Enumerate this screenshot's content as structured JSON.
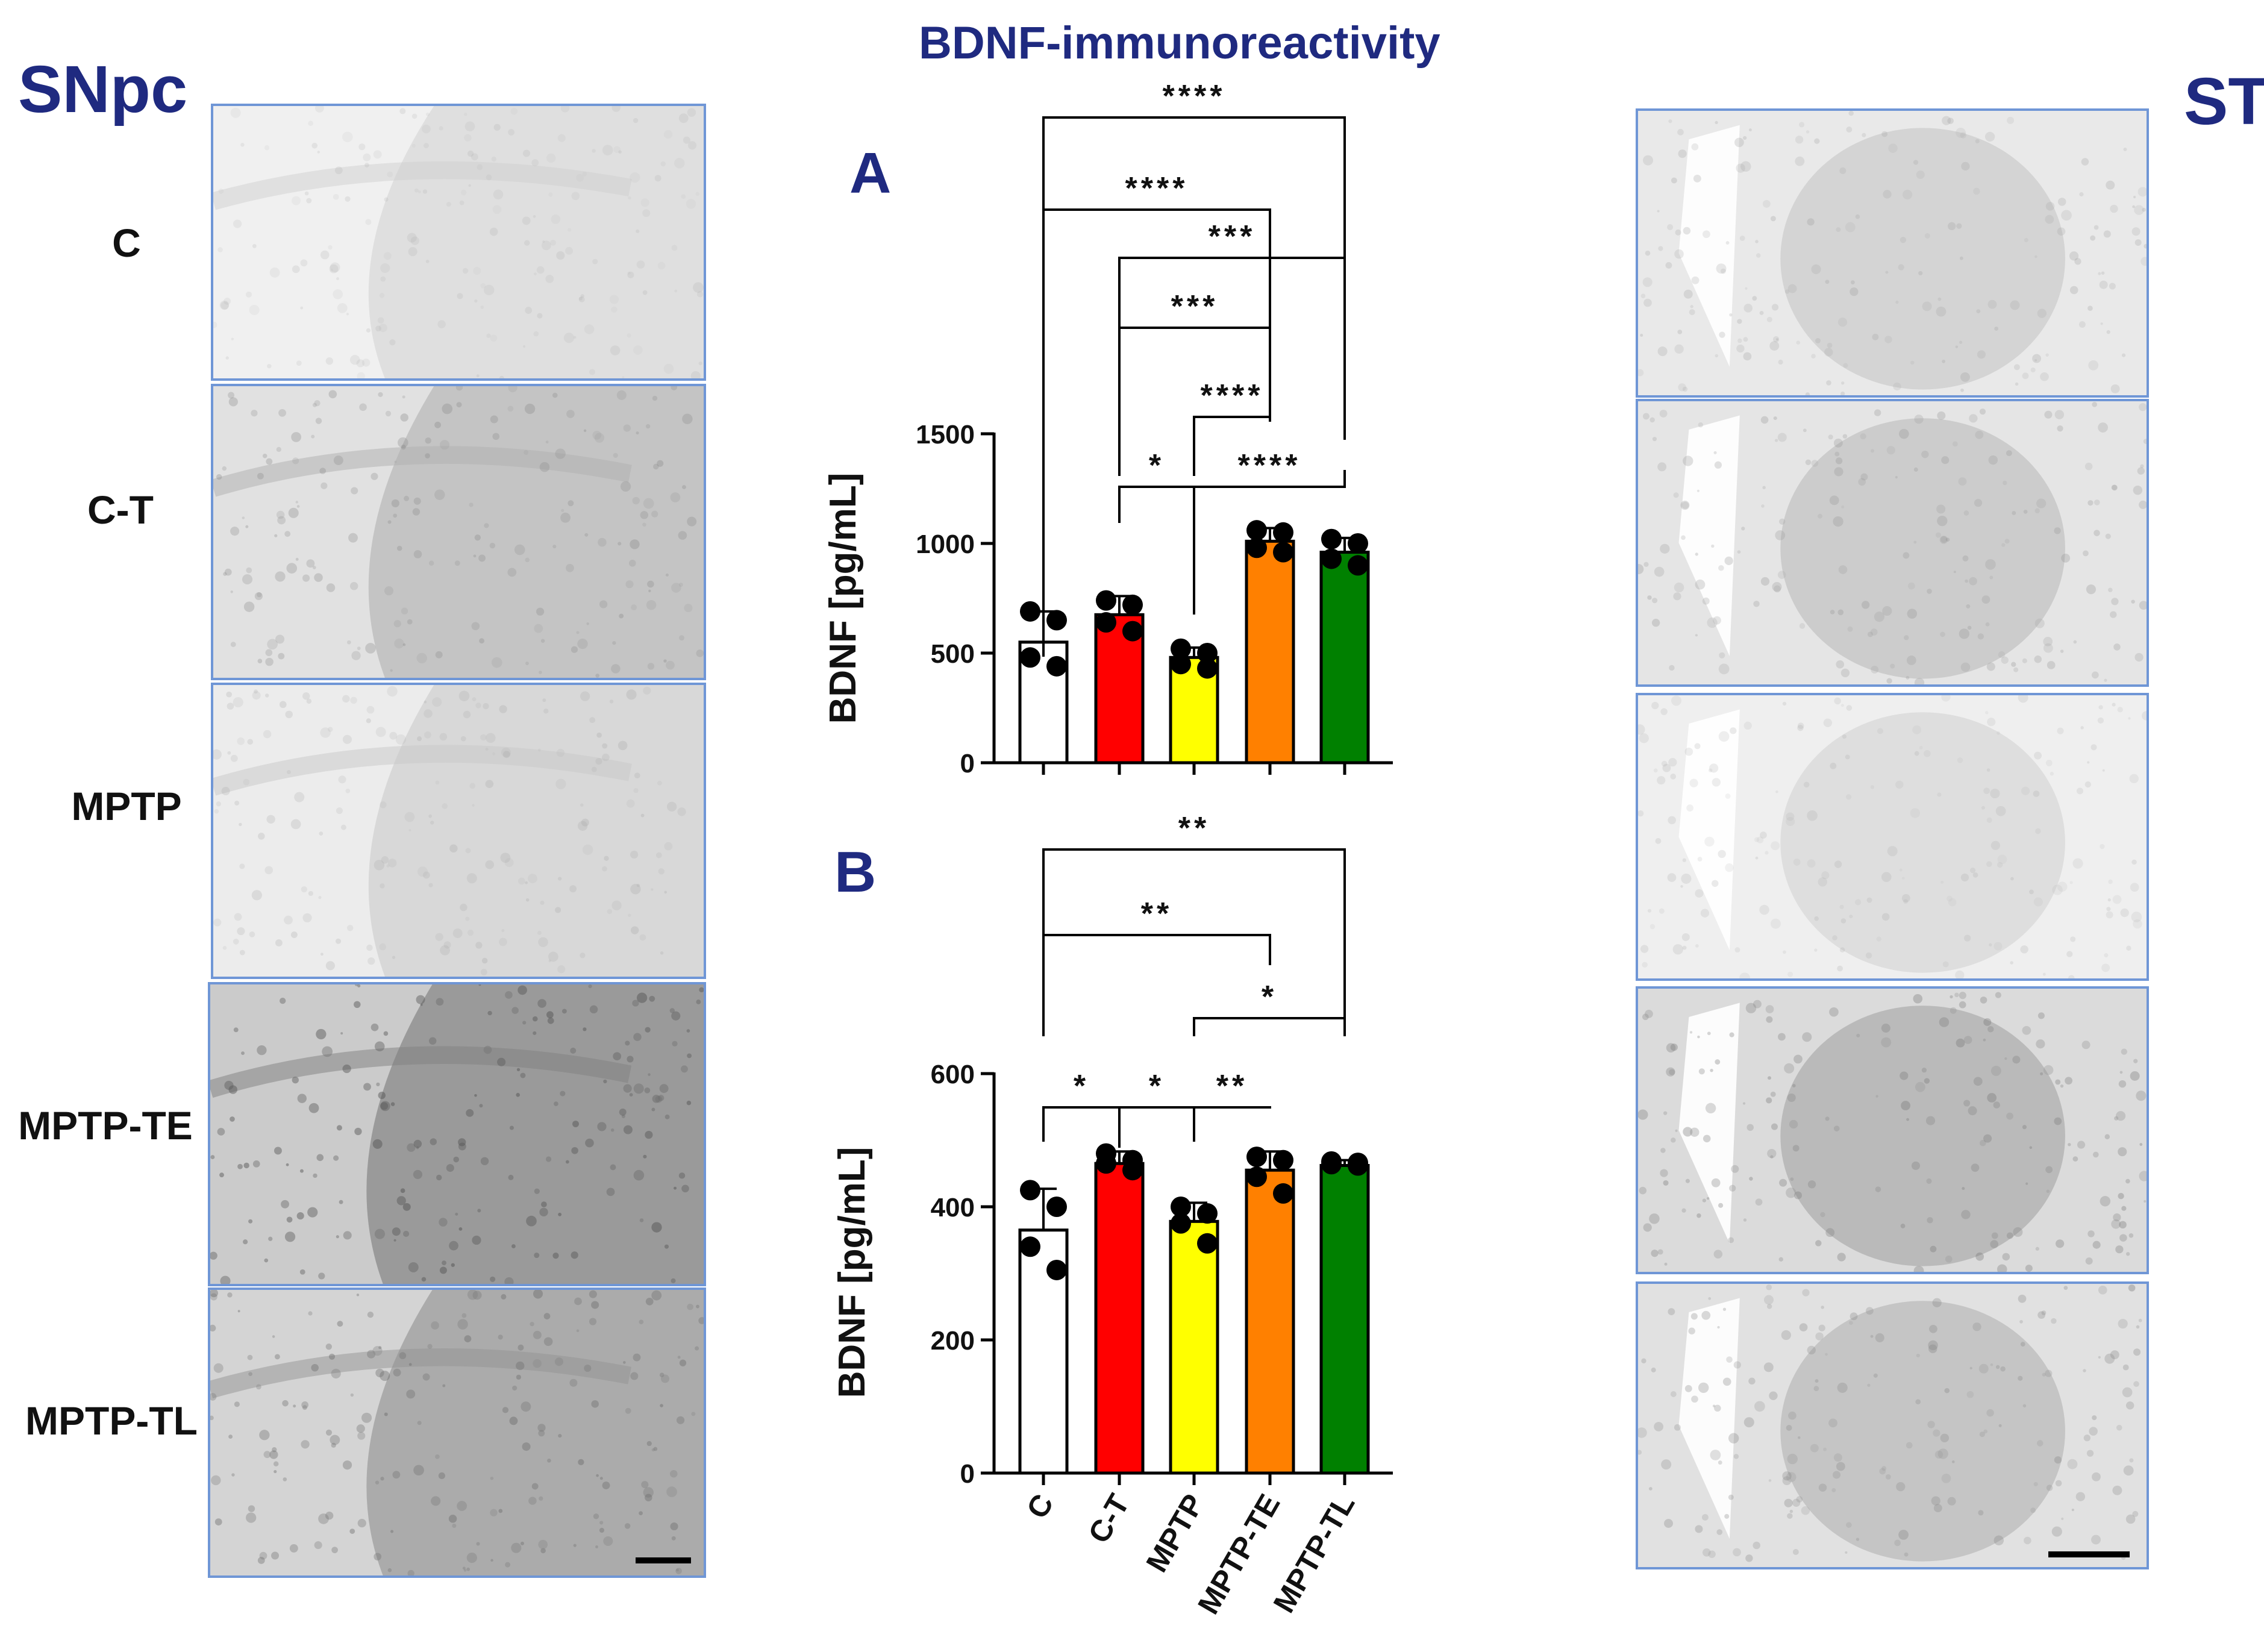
{
  "figure": {
    "title": "BDNF-immunoreactivity",
    "left_region": "SNpc",
    "right_region": "ST",
    "group_labels": [
      "C",
      "C-T",
      "MPTP",
      "MPTP-TE",
      "MPTP-TL"
    ]
  },
  "snpc_panels": [
    {
      "label": "C",
      "stain": 0.08
    },
    {
      "label": "C-T",
      "stain": 0.3
    },
    {
      "label": "MPTP",
      "stain": 0.14
    },
    {
      "label": "MPTP-TE",
      "stain": 0.62
    },
    {
      "label": "MPTP-TL",
      "stain": 0.48
    }
  ],
  "st_panels": [
    {
      "label": "C",
      "stain": 0.18
    },
    {
      "label": "C-T",
      "stain": 0.24
    },
    {
      "label": "MPTP",
      "stain": 0.1
    },
    {
      "label": "MPTP-TE",
      "stain": 0.38
    },
    {
      "label": "MPTP-TL",
      "stain": 0.3
    }
  ],
  "colors": {
    "C": "#ffffff",
    "C-T": "#ff0000",
    "MPTP": "#ffff00",
    "MPTP-TE": "#ff8000",
    "MPTP-TL": "#008000",
    "accent": "#1f2a80",
    "panel_border": "#6f96d6"
  },
  "chart_data": [
    {
      "type": "bar",
      "panel_letter": "A",
      "categories": [
        "C",
        "C-T",
        "MPTP",
        "MPTP-TE",
        "MPTP-TL"
      ],
      "values": [
        550,
        675,
        480,
        1010,
        960
      ],
      "errors": [
        140,
        85,
        45,
        60,
        65
      ],
      "points": [
        [
          690,
          650,
          480,
          440
        ],
        [
          740,
          720,
          640,
          600
        ],
        [
          520,
          500,
          450,
          430
        ],
        [
          1060,
          1050,
          980,
          960
        ],
        [
          1020,
          1000,
          930,
          900
        ]
      ],
      "xlabel": "",
      "ylabel": "BDNF [pg/mL]",
      "ylim": [
        0,
        1500
      ],
      "yticks": [
        0,
        500,
        1000,
        1500
      ],
      "show_xticklabels": false,
      "significance": [
        {
          "from": "C",
          "to": "MPTP-TL",
          "label": "****"
        },
        {
          "from": "C",
          "to": "MPTP-TE",
          "label": "****"
        },
        {
          "from": "C-T",
          "to": "MPTP-TL",
          "label": "***"
        },
        {
          "from": "C-T",
          "to": "MPTP-TE",
          "label": "***"
        },
        {
          "from": "MPTP",
          "to": "MPTP-TE",
          "label": "****"
        },
        {
          "from": "C-T",
          "to": "MPTP",
          "label": "*"
        },
        {
          "from": "MPTP",
          "to": "MPTP-TL",
          "label": "****"
        }
      ]
    },
    {
      "type": "bar",
      "panel_letter": "B",
      "categories": [
        "C",
        "C-T",
        "MPTP",
        "MPTP-TE",
        "MPTP-TL"
      ],
      "values": [
        365,
        465,
        378,
        455,
        462
      ],
      "errors": [
        62,
        18,
        28,
        28,
        8
      ],
      "points": [
        [
          425,
          400,
          340,
          305
        ],
        [
          480,
          470,
          465,
          455
        ],
        [
          400,
          390,
          375,
          345
        ],
        [
          475,
          470,
          445,
          420
        ],
        [
          468,
          466,
          464,
          462
        ]
      ],
      "xlabel": "",
      "ylabel": "BDNF [pg/mL]",
      "ylim": [
        0,
        600
      ],
      "yticks": [
        0,
        200,
        400,
        600
      ],
      "show_xticklabels": true,
      "significance": [
        {
          "from": "C",
          "to": "MPTP-TL",
          "label": "**"
        },
        {
          "from": "C",
          "to": "MPTP-TE",
          "label": "**"
        },
        {
          "from": "MPTP",
          "to": "MPTP-TL",
          "label": "*"
        },
        {
          "from": "C",
          "to": "C-T",
          "label": "*"
        },
        {
          "from": "C-T",
          "to": "MPTP",
          "label": "*"
        },
        {
          "from": "MPTP",
          "to": "MPTP-TE",
          "label": "**"
        }
      ]
    }
  ]
}
